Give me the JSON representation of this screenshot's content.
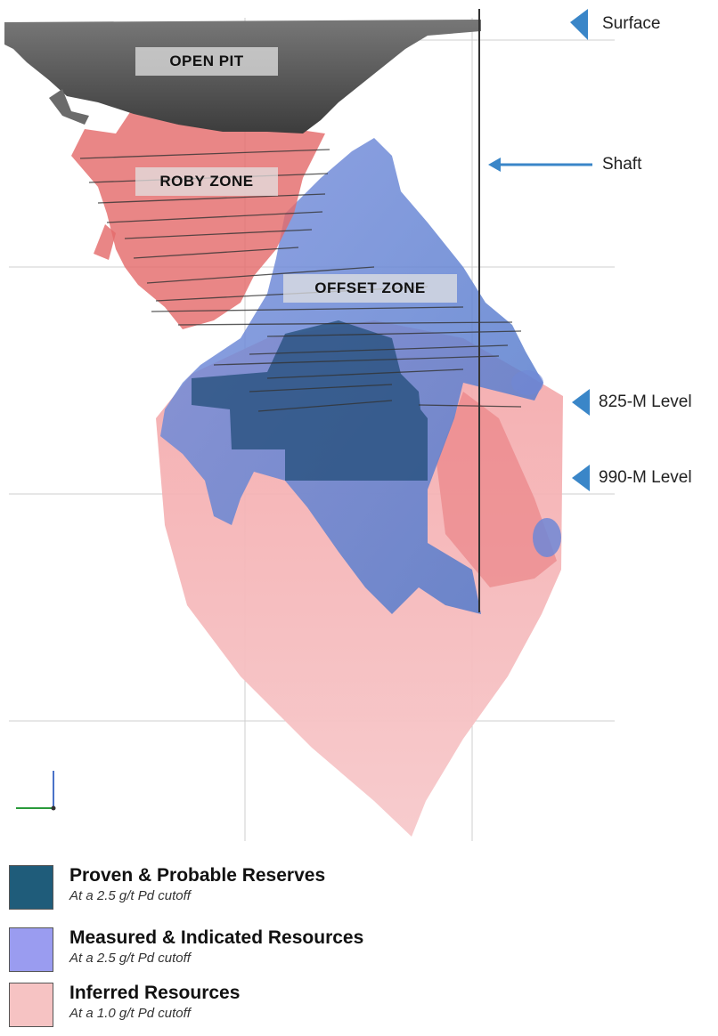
{
  "zones": {
    "open_pit": "OPEN PIT",
    "roby_zone": "ROBY ZONE",
    "offset_zone": "OFFSET ZONE"
  },
  "markers": {
    "surface": "Surface",
    "shaft": "Shaft",
    "level_825": "825-M Level",
    "level_990": "990-M Level"
  },
  "legend": [
    {
      "title": "Proven & Probable Reserves",
      "subtitle": "At a 2.5 g/t Pd cutoff",
      "color": "#1f5c7a"
    },
    {
      "title": "Measured & Indicated Resources",
      "subtitle": "At a 2.5 g/t Pd cutoff",
      "color": "#9a9cf0"
    },
    {
      "title": "Inferred Resources",
      "subtitle": "At a 1.0 g/t Pd cutoff",
      "color": "#f6c3c3"
    }
  ],
  "colors": {
    "open_pit": "#5a5a5a",
    "roby": "#e06a6a",
    "measured": "#5a7fd6",
    "inferred": "#f5b8b8",
    "reserves": "#254f7c",
    "marker": "#3a86c8"
  },
  "icons": {
    "level_marker": "triangle-left-icon",
    "shaft_arrow": "arrow-left-icon",
    "axis": "axis-triad-icon"
  }
}
